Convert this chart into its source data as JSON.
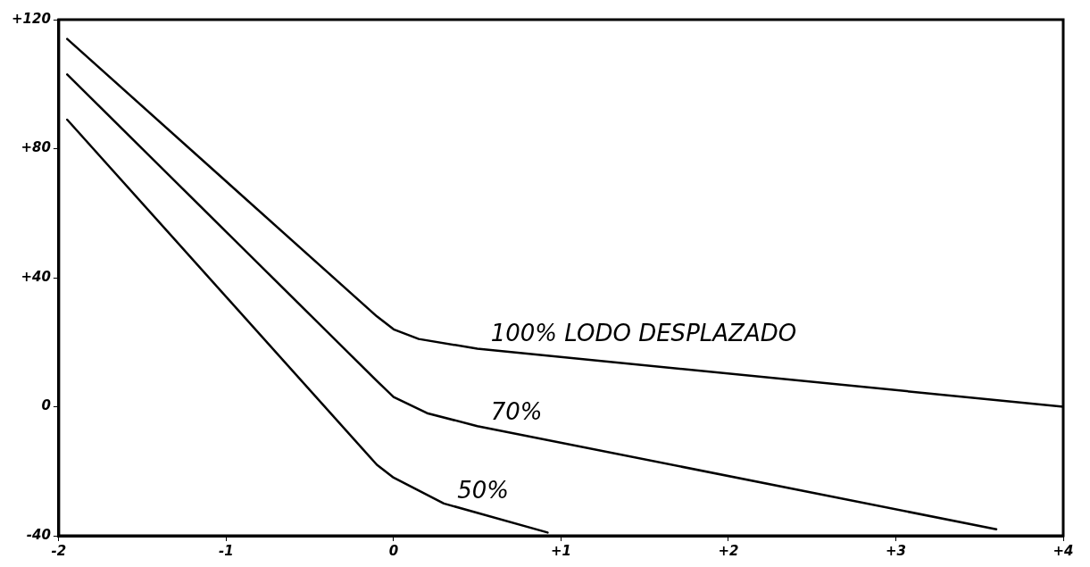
{
  "chart_data": {
    "type": "line",
    "xlim": [
      -2,
      4
    ],
    "ylim": [
      -40,
      120
    ],
    "xticks": [
      {
        "value": -2,
        "label": "-2"
      },
      {
        "value": -1,
        "label": "-1"
      },
      0,
      {
        "value": 1,
        "label": "+1"
      },
      {
        "value": 2,
        "label": "+2"
      },
      {
        "value": 3,
        "label": "+3"
      },
      {
        "value": 4,
        "label": "+4"
      }
    ],
    "yticks": [
      {
        "value": -40,
        "label": "-40"
      },
      0,
      {
        "value": 40,
        "label": "+40"
      },
      {
        "value": 80,
        "label": "+80"
      },
      {
        "value": 120,
        "label": "+120"
      }
    ],
    "grid": false,
    "legend": false,
    "marker": "none",
    "line_style": "solid",
    "series": [
      {
        "name": "100% LODO DESPLAZADO",
        "color": "#000000",
        "x": [
          -1.95,
          -0.1,
          0,
          0.15,
          0.5,
          4
        ],
        "values": [
          114,
          28,
          24,
          21,
          18,
          0
        ]
      },
      {
        "name": "70%",
        "color": "#000000",
        "x": [
          -1.95,
          -0.1,
          0,
          0.2,
          0.5,
          3.6
        ],
        "values": [
          103,
          8,
          3,
          -2,
          -6,
          -38
        ]
      },
      {
        "name": "50%",
        "color": "#000000",
        "x": [
          -1.95,
          -0.1,
          0,
          0.3,
          0.92
        ],
        "values": [
          89,
          -18,
          -22,
          -30,
          -39
        ]
      }
    ]
  }
}
